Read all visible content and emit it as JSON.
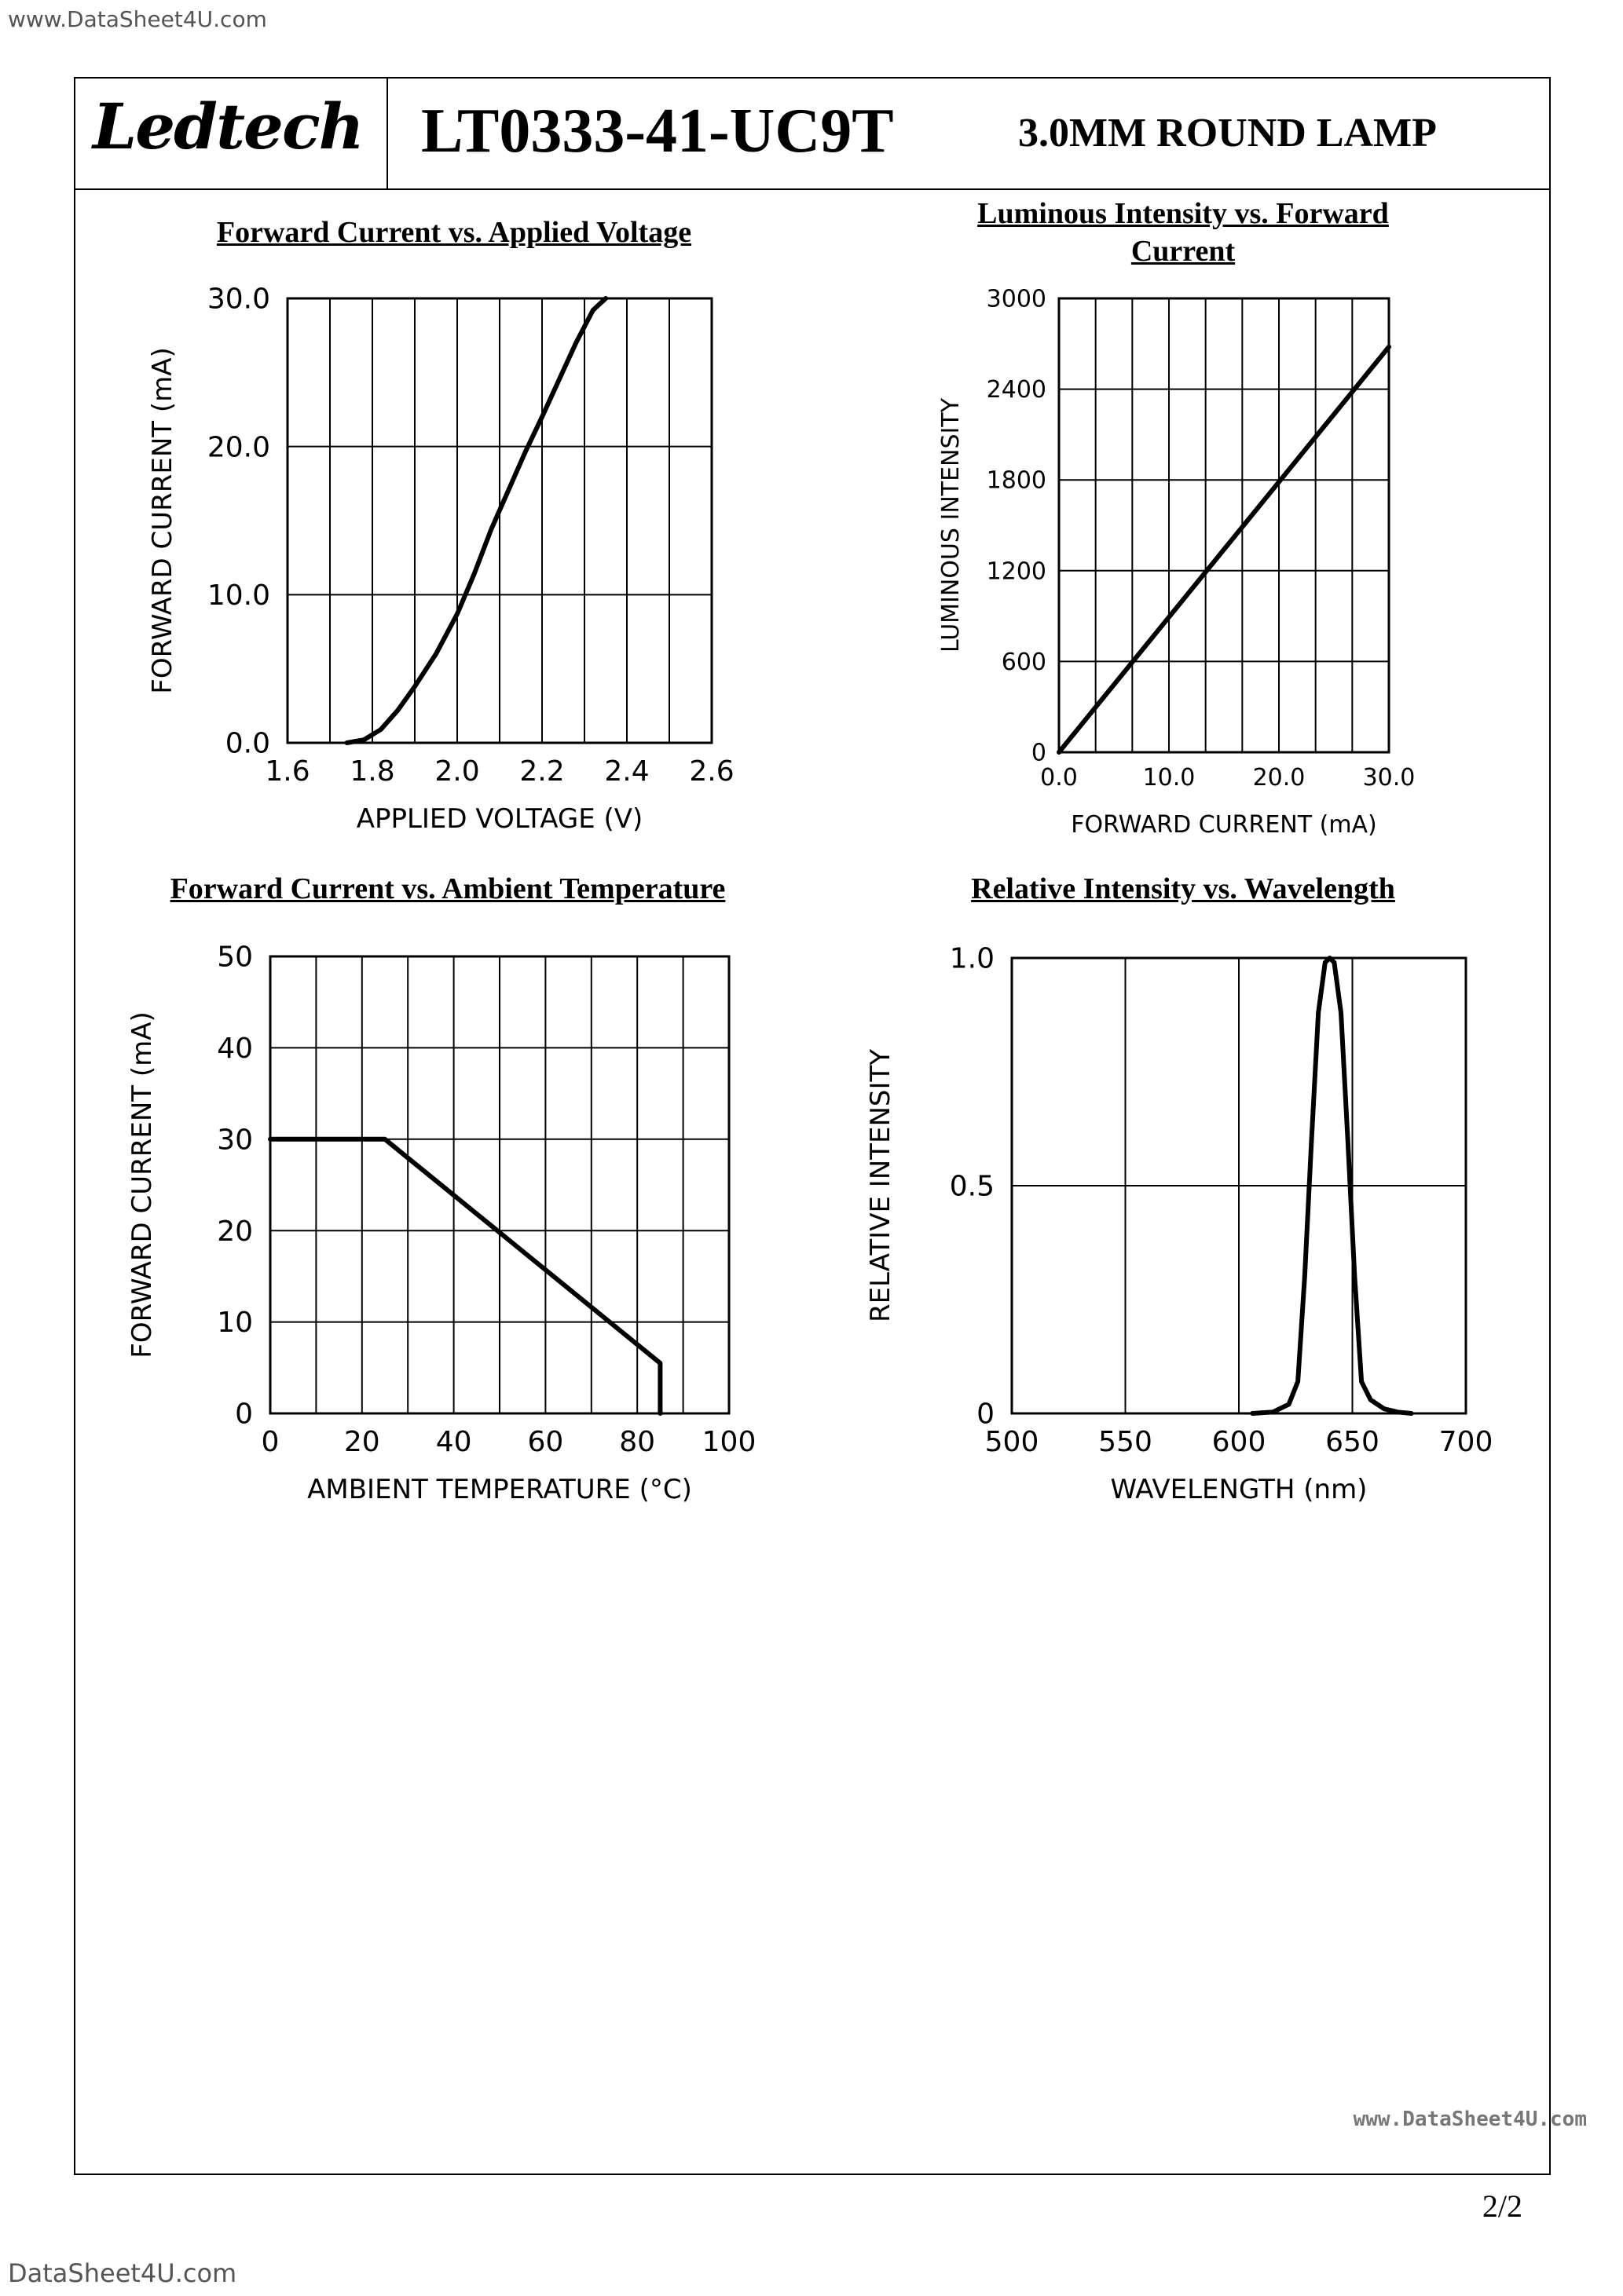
{
  "watermarks": {
    "top": "www.DataSheet4U.com",
    "right": "www.DataSheet4U.com",
    "bottom": "DataSheet4U.com"
  },
  "header": {
    "logo": "Ledtech",
    "part_number": "LT0333-41-UC9T",
    "product": "3.0MM ROUND LAMP"
  },
  "page": "2/2",
  "chart_data": [
    {
      "type": "line",
      "title": "Forward Current vs. Applied Voltage",
      "xlabel": "APPLIED VOLTAGE (V)",
      "ylabel": "FORWARD CURRENT (mA)",
      "xlim": [
        1.6,
        2.6
      ],
      "ylim": [
        0,
        30
      ],
      "x_ticks": [
        "1.6",
        "1.8",
        "2.0",
        "2.2",
        "2.4",
        "2.6"
      ],
      "y_ticks": [
        "0.0",
        "10.0",
        "20.0",
        "30.0"
      ],
      "x": [
        1.74,
        1.78,
        1.82,
        1.86,
        1.9,
        1.95,
        2.0,
        2.04,
        2.08,
        2.12,
        2.16,
        2.2,
        2.24,
        2.28,
        2.32,
        2.35
      ],
      "y": [
        0,
        0.2,
        0.9,
        2.2,
        3.8,
        6.0,
        8.7,
        11.4,
        14.4,
        17.0,
        19.6,
        22.0,
        24.5,
        27.0,
        29.2,
        30.0
      ]
    },
    {
      "type": "line",
      "title": "Luminous Intensity vs. Forward Current",
      "xlabel": "FORWARD CURRENT (mA)",
      "ylabel": "LUMINOUS INTENSITY",
      "xlim": [
        0,
        30
      ],
      "ylim": [
        0,
        3000
      ],
      "x_ticks": [
        "0.0",
        "10.0",
        "20.0",
        "30.0"
      ],
      "y_ticks": [
        "0",
        "600",
        "1200",
        "1800",
        "2400",
        "3000"
      ],
      "x": [
        0,
        30
      ],
      "y": [
        0,
        2680
      ]
    },
    {
      "type": "line",
      "title": "Forward Current vs. Ambient Temperature",
      "xlabel": "AMBIENT TEMPERATURE (°C)",
      "ylabel": "FORWARD CURRENT (mA)",
      "xlim": [
        0,
        100
      ],
      "ylim": [
        0,
        50
      ],
      "x_ticks": [
        "0",
        "20",
        "40",
        "60",
        "80",
        "100"
      ],
      "y_ticks": [
        "0",
        "10",
        "20",
        "30",
        "40",
        "50"
      ],
      "x": [
        0,
        25,
        85,
        85
      ],
      "y": [
        30,
        30,
        5.5,
        0
      ]
    },
    {
      "type": "line",
      "title": "Relative Intensity vs. Wavelength",
      "xlabel": "WAVELENGTH (nm)",
      "ylabel": "RELATIVE INTENSITY",
      "xlim": [
        500,
        700
      ],
      "ylim": [
        0,
        1.0
      ],
      "x_ticks": [
        "500",
        "550",
        "600",
        "650",
        "700"
      ],
      "y_ticks": [
        "0",
        "0.5",
        "1.0"
      ],
      "x": [
        606,
        615,
        622,
        626,
        629,
        632,
        635,
        638,
        640,
        642,
        645,
        648,
        651,
        654,
        658,
        664,
        670,
        676
      ],
      "y": [
        0,
        0.003,
        0.02,
        0.07,
        0.3,
        0.6,
        0.88,
        0.99,
        1.0,
        0.99,
        0.88,
        0.6,
        0.3,
        0.07,
        0.03,
        0.01,
        0.003,
        0
      ]
    }
  ]
}
